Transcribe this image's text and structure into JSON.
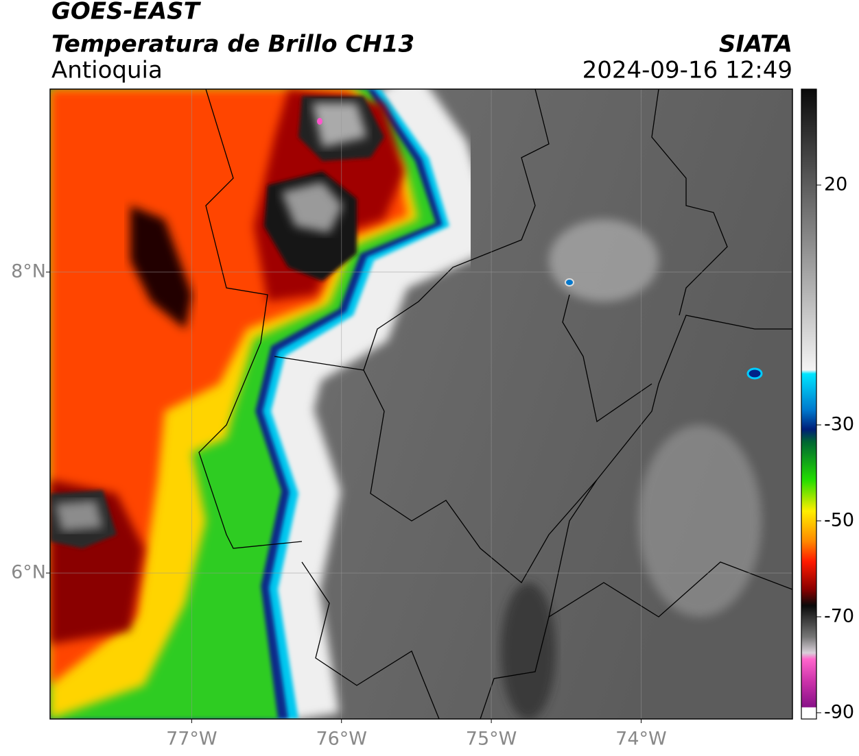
{
  "header": {
    "title": "GOES-EAST",
    "subtitle": "Temperatura de Brillo CH13",
    "region": "Antioquia",
    "source": "SIATA",
    "timestamp": "2024-09-16 12:49"
  },
  "map": {
    "xlim": [
      -77.945,
      -72.99
    ],
    "ylim": [
      5.03,
      9.216
    ],
    "xticks": [
      {
        "value": -77,
        "label": "77°W"
      },
      {
        "value": -76,
        "label": "76°W"
      },
      {
        "value": -75,
        "label": "75°W"
      },
      {
        "value": -74,
        "label": "74°W"
      }
    ],
    "yticks": [
      {
        "value": 8,
        "label": "8°N"
      },
      {
        "value": 6,
        "label": "6°N"
      }
    ],
    "grid": true
  },
  "colorbar": {
    "lim": [
      -91.3,
      40
    ],
    "ticks": [
      20,
      -30,
      -50,
      -70,
      -90
    ]
  }
}
